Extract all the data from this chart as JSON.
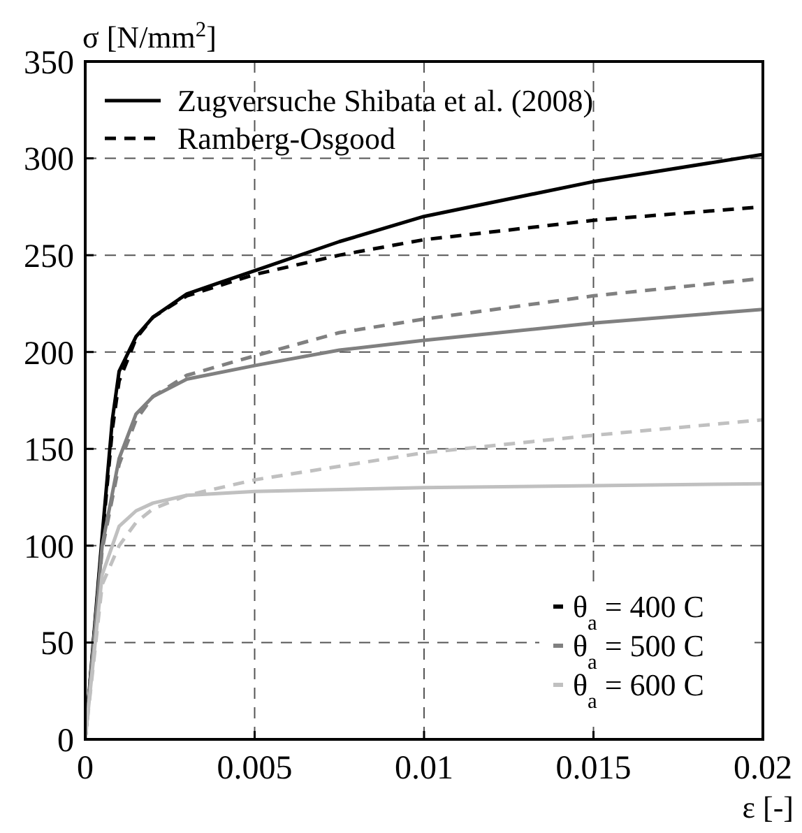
{
  "chart_data": {
    "type": "line",
    "xlabel": "ε [-]",
    "ylabel": "σ [N/mm$^{2}$]",
    "xlim": [
      0,
      0.02
    ],
    "ylim": [
      0,
      350
    ],
    "xticks": [
      0,
      0.005,
      0.01,
      0.015,
      0.02
    ],
    "yticks": [
      0,
      50,
      100,
      150,
      200,
      250,
      300,
      350
    ],
    "grid": true,
    "legend": "top left",
    "series": [
      {
        "name": "Zugversuche Shibata et al. (2008)",
        "color": "#000000",
        "line_style": "solid",
        "x": [
          0,
          0.0005,
          0.0008,
          0.001,
          0.0015,
          0.002,
          0.003,
          0.004,
          0.005,
          0.0075,
          0.01,
          0.015,
          0.02
        ],
        "values": [
          0,
          105,
          165,
          190,
          208,
          218,
          230,
          236,
          242,
          257,
          270,
          288,
          302
        ]
      },
      {
        "name": "Ramberg-Osgood",
        "color": "#000000",
        "line_style": "dashed",
        "x": [
          0,
          0.0005,
          0.0008,
          0.001,
          0.0015,
          0.002,
          0.003,
          0.005,
          0.0075,
          0.01,
          0.015,
          0.02
        ],
        "values": [
          0,
          103,
          160,
          185,
          207,
          218,
          229,
          240,
          250,
          258,
          268,
          275
        ]
      },
      {
        "color": "#808080",
        "line_style": "solid",
        "x": [
          0,
          0.0005,
          0.001,
          0.0015,
          0.002,
          0.003,
          0.005,
          0.0075,
          0.01,
          0.015,
          0.02
        ],
        "values": [
          0,
          100,
          145,
          168,
          177,
          186,
          193,
          201,
          206,
          215,
          222
        ]
      },
      {
        "color": "#808080",
        "line_style": "dashed",
        "x": [
          0,
          0.0005,
          0.001,
          0.0015,
          0.002,
          0.003,
          0.005,
          0.0075,
          0.01,
          0.015,
          0.02
        ],
        "values": [
          0,
          98,
          142,
          165,
          177,
          188,
          198,
          210,
          217,
          229,
          238
        ]
      },
      {
        "color": "#c0c0c0",
        "line_style": "solid",
        "x": [
          0,
          0.0005,
          0.001,
          0.0015,
          0.002,
          0.003,
          0.005,
          0.01,
          0.015,
          0.02
        ],
        "values": [
          0,
          85,
          110,
          118,
          122,
          126,
          128,
          130,
          131,
          132
        ]
      },
      {
        "color": "#c0c0c0",
        "line_style": "dashed",
        "x": [
          0,
          0.0005,
          0.001,
          0.0015,
          0.002,
          0.003,
          0.005,
          0.01,
          0.015,
          0.02
        ],
        "values": [
          0,
          80,
          100,
          112,
          119,
          126,
          134,
          148,
          157,
          165
        ]
      }
    ],
    "annotations": [
      "θ$_{a}$ = 400 C",
      "θ$_{a}$ = 500 C",
      "θ$_{a}$ = 600 C"
    ]
  }
}
